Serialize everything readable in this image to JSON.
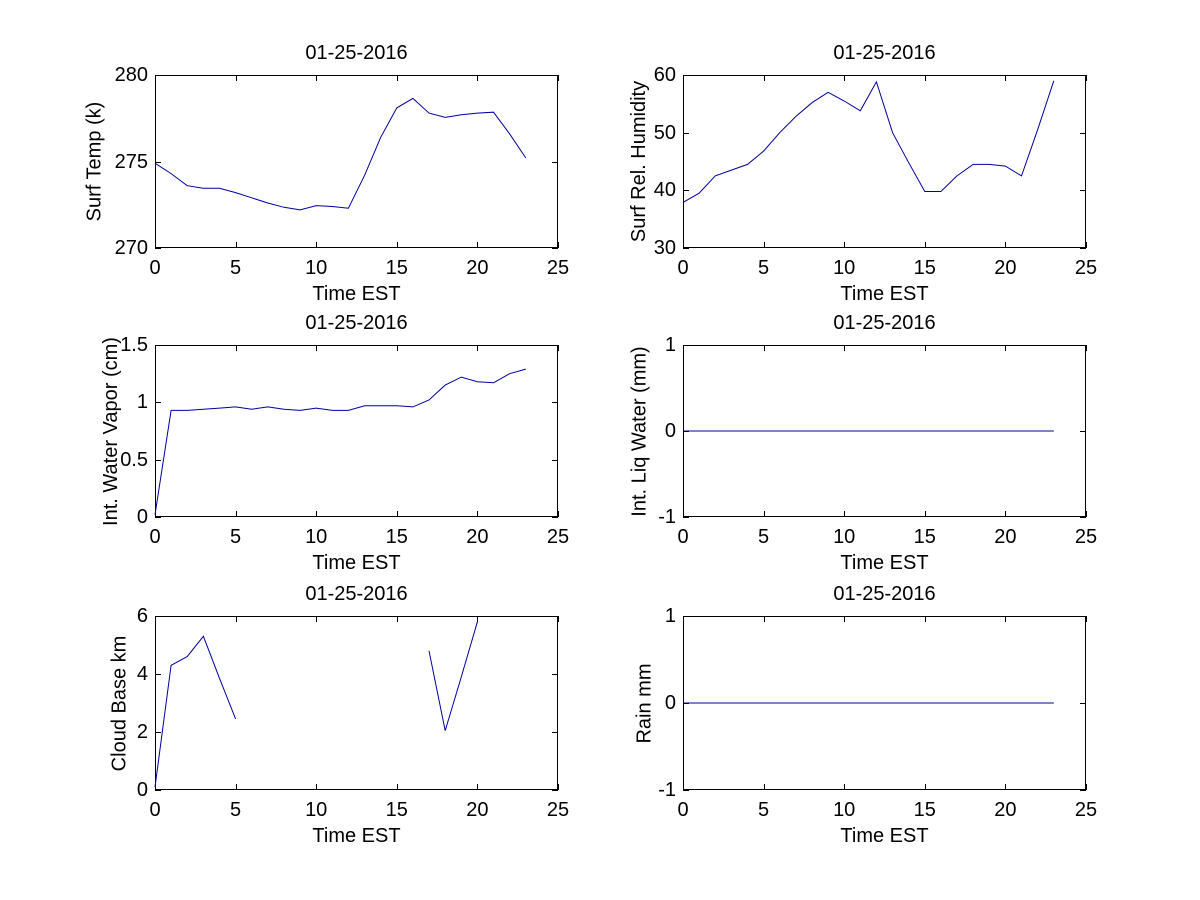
{
  "figure": {
    "background": "#ffffff",
    "axis_color": "#000000",
    "text_color": "#000000",
    "line_color": "#00009C"
  },
  "chart_data": [
    {
      "type": "line",
      "title": "01-25-2016",
      "xlabel": "Time EST",
      "ylabel": "Surf Temp (k)",
      "xlim": [
        0,
        25
      ],
      "ylim": [
        270,
        280
      ],
      "xticks": [
        0,
        5,
        10,
        15,
        20,
        25
      ],
      "xtick_labels": [
        "0",
        "5",
        "10",
        "15",
        "20",
        "25"
      ],
      "yticks": [
        270,
        275,
        280
      ],
      "ytick_labels": [
        "270",
        "275",
        "280"
      ],
      "grid": false,
      "legend": null,
      "line_color": "#00009C",
      "segments": [
        [
          [
            0,
            274.9
          ],
          [
            1,
            274.3
          ],
          [
            2,
            273.6
          ],
          [
            3,
            273.45
          ],
          [
            4,
            273.45
          ],
          [
            5,
            273.2
          ],
          [
            6,
            272.9
          ],
          [
            7,
            272.6
          ],
          [
            8,
            272.35
          ],
          [
            9,
            272.2
          ],
          [
            10,
            272.45
          ],
          [
            11,
            272.4
          ],
          [
            12,
            272.3
          ],
          [
            13,
            274.2
          ],
          [
            14,
            276.4
          ],
          [
            15,
            278.1
          ],
          [
            16,
            278.65
          ],
          [
            17,
            277.8
          ],
          [
            18,
            277.55
          ],
          [
            19,
            277.7
          ],
          [
            20,
            277.8
          ],
          [
            21,
            277.85
          ],
          [
            22,
            276.6
          ],
          [
            23,
            275.2
          ]
        ]
      ]
    },
    {
      "type": "line",
      "title": "01-25-2016",
      "xlabel": "Time EST",
      "ylabel": "Surf Rel. Humidity",
      "xlim": [
        0,
        25
      ],
      "ylim": [
        30,
        60
      ],
      "xticks": [
        0,
        5,
        10,
        15,
        20,
        25
      ],
      "xtick_labels": [
        "0",
        "5",
        "10",
        "15",
        "20",
        "25"
      ],
      "yticks": [
        30,
        40,
        50,
        60
      ],
      "ytick_labels": [
        "30",
        "40",
        "50",
        "60"
      ],
      "grid": false,
      "legend": null,
      "line_color": "#00009C",
      "segments": [
        [
          [
            0,
            37.9
          ],
          [
            1,
            39.5
          ],
          [
            2,
            42.5
          ],
          [
            3,
            43.5
          ],
          [
            4,
            44.5
          ],
          [
            5,
            46.8
          ],
          [
            6,
            50.0
          ],
          [
            7,
            52.8
          ],
          [
            8,
            55.2
          ],
          [
            9,
            57.0
          ],
          [
            10,
            55.5
          ],
          [
            11,
            53.8
          ],
          [
            12,
            58.8
          ],
          [
            13,
            50.0
          ],
          [
            14,
            44.8
          ],
          [
            15,
            39.8
          ],
          [
            16,
            39.8
          ],
          [
            17,
            42.5
          ],
          [
            18,
            44.5
          ],
          [
            19,
            44.5
          ],
          [
            20,
            44.2
          ],
          [
            21,
            42.5
          ],
          [
            22,
            50.5
          ],
          [
            23,
            59.0
          ]
        ]
      ]
    },
    {
      "type": "line",
      "title": "01-25-2016",
      "xlabel": "Time EST",
      "ylabel": "Int. Water Vapor (cm)",
      "xlim": [
        0,
        25
      ],
      "ylim": [
        0,
        1.5
      ],
      "xticks": [
        0,
        5,
        10,
        15,
        20,
        25
      ],
      "xtick_labels": [
        "0",
        "5",
        "10",
        "15",
        "20",
        "25"
      ],
      "yticks": [
        0,
        0.5,
        1,
        1.5
      ],
      "ytick_labels": [
        "0",
        "0.5",
        "1",
        "1.5"
      ],
      "grid": false,
      "legend": null,
      "line_color": "#00009C",
      "segments": [
        [
          [
            0,
            0.02
          ],
          [
            1,
            0.93
          ],
          [
            2,
            0.93
          ],
          [
            3,
            0.94
          ],
          [
            4,
            0.95
          ],
          [
            5,
            0.96
          ],
          [
            6,
            0.94
          ],
          [
            7,
            0.96
          ],
          [
            8,
            0.94
          ],
          [
            9,
            0.93
          ],
          [
            10,
            0.95
          ],
          [
            11,
            0.93
          ],
          [
            12,
            0.93
          ],
          [
            13,
            0.97
          ],
          [
            14,
            0.97
          ],
          [
            15,
            0.97
          ],
          [
            16,
            0.96
          ],
          [
            17,
            1.02
          ],
          [
            18,
            1.15
          ],
          [
            19,
            1.22
          ],
          [
            20,
            1.18
          ],
          [
            21,
            1.17
          ],
          [
            22,
            1.25
          ],
          [
            23,
            1.29
          ]
        ]
      ]
    },
    {
      "type": "line",
      "title": "01-25-2016",
      "xlabel": "Time EST",
      "ylabel": "Int. Liq Water (mm)",
      "xlim": [
        0,
        25
      ],
      "ylim": [
        -1,
        1
      ],
      "xticks": [
        0,
        5,
        10,
        15,
        20,
        25
      ],
      "xtick_labels": [
        "0",
        "5",
        "10",
        "15",
        "20",
        "25"
      ],
      "yticks": [
        -1,
        0,
        1
      ],
      "ytick_labels": [
        "-1",
        "0",
        "1"
      ],
      "grid": false,
      "legend": null,
      "line_color": "#00009C",
      "segments": [
        [
          [
            0,
            0
          ],
          [
            1,
            0
          ],
          [
            2,
            0
          ],
          [
            3,
            0
          ],
          [
            4,
            0
          ],
          [
            5,
            0
          ],
          [
            6,
            0
          ],
          [
            7,
            0
          ],
          [
            8,
            0
          ],
          [
            9,
            0
          ],
          [
            10,
            0
          ],
          [
            11,
            0
          ],
          [
            12,
            0
          ],
          [
            13,
            0
          ],
          [
            14,
            0
          ],
          [
            15,
            0
          ],
          [
            16,
            0
          ],
          [
            17,
            0
          ],
          [
            18,
            0
          ],
          [
            19,
            0
          ],
          [
            20,
            0
          ],
          [
            21,
            0
          ],
          [
            22,
            0
          ],
          [
            23,
            0
          ]
        ]
      ]
    },
    {
      "type": "line",
      "title": "01-25-2016",
      "xlabel": "Time EST",
      "ylabel": "Cloud Base km",
      "xlim": [
        0,
        25
      ],
      "ylim": [
        0,
        6
      ],
      "xticks": [
        0,
        5,
        10,
        15,
        20,
        25
      ],
      "xtick_labels": [
        "0",
        "5",
        "10",
        "15",
        "20",
        "25"
      ],
      "yticks": [
        0,
        2,
        4,
        6
      ],
      "ytick_labels": [
        "0",
        "2",
        "4",
        "6"
      ],
      "grid": false,
      "legend": null,
      "line_color": "#00009C",
      "segments": [
        [
          [
            0,
            0.1
          ],
          [
            1,
            4.3
          ],
          [
            2,
            4.6
          ],
          [
            3,
            5.3
          ],
          [
            4,
            3.85
          ],
          [
            5,
            2.45
          ]
        ],
        [
          [
            17,
            4.8
          ],
          [
            18,
            2.05
          ],
          [
            19,
            3.9
          ],
          [
            20,
            5.8
          ]
        ]
      ]
    },
    {
      "type": "line",
      "title": "01-25-2016",
      "xlabel": "Time EST",
      "ylabel": "Rain mm",
      "xlim": [
        0,
        25
      ],
      "ylim": [
        -1,
        1
      ],
      "xticks": [
        0,
        5,
        10,
        15,
        20,
        25
      ],
      "xtick_labels": [
        "0",
        "5",
        "10",
        "15",
        "20",
        "25"
      ],
      "yticks": [
        -1,
        0,
        1
      ],
      "ytick_labels": [
        "-1",
        "0",
        "1"
      ],
      "grid": false,
      "legend": null,
      "line_color": "#00009C",
      "segments": [
        [
          [
            0,
            0
          ],
          [
            1,
            0
          ],
          [
            2,
            0
          ],
          [
            3,
            0
          ],
          [
            4,
            0
          ],
          [
            5,
            0
          ],
          [
            6,
            0
          ],
          [
            7,
            0
          ],
          [
            8,
            0
          ],
          [
            9,
            0
          ],
          [
            10,
            0
          ],
          [
            11,
            0
          ],
          [
            12,
            0
          ],
          [
            13,
            0
          ],
          [
            14,
            0
          ],
          [
            15,
            0
          ],
          [
            16,
            0
          ],
          [
            17,
            0
          ],
          [
            18,
            0
          ],
          [
            19,
            0
          ],
          [
            20,
            0
          ],
          [
            21,
            0
          ],
          [
            22,
            0
          ],
          [
            23,
            0
          ]
        ]
      ]
    }
  ]
}
